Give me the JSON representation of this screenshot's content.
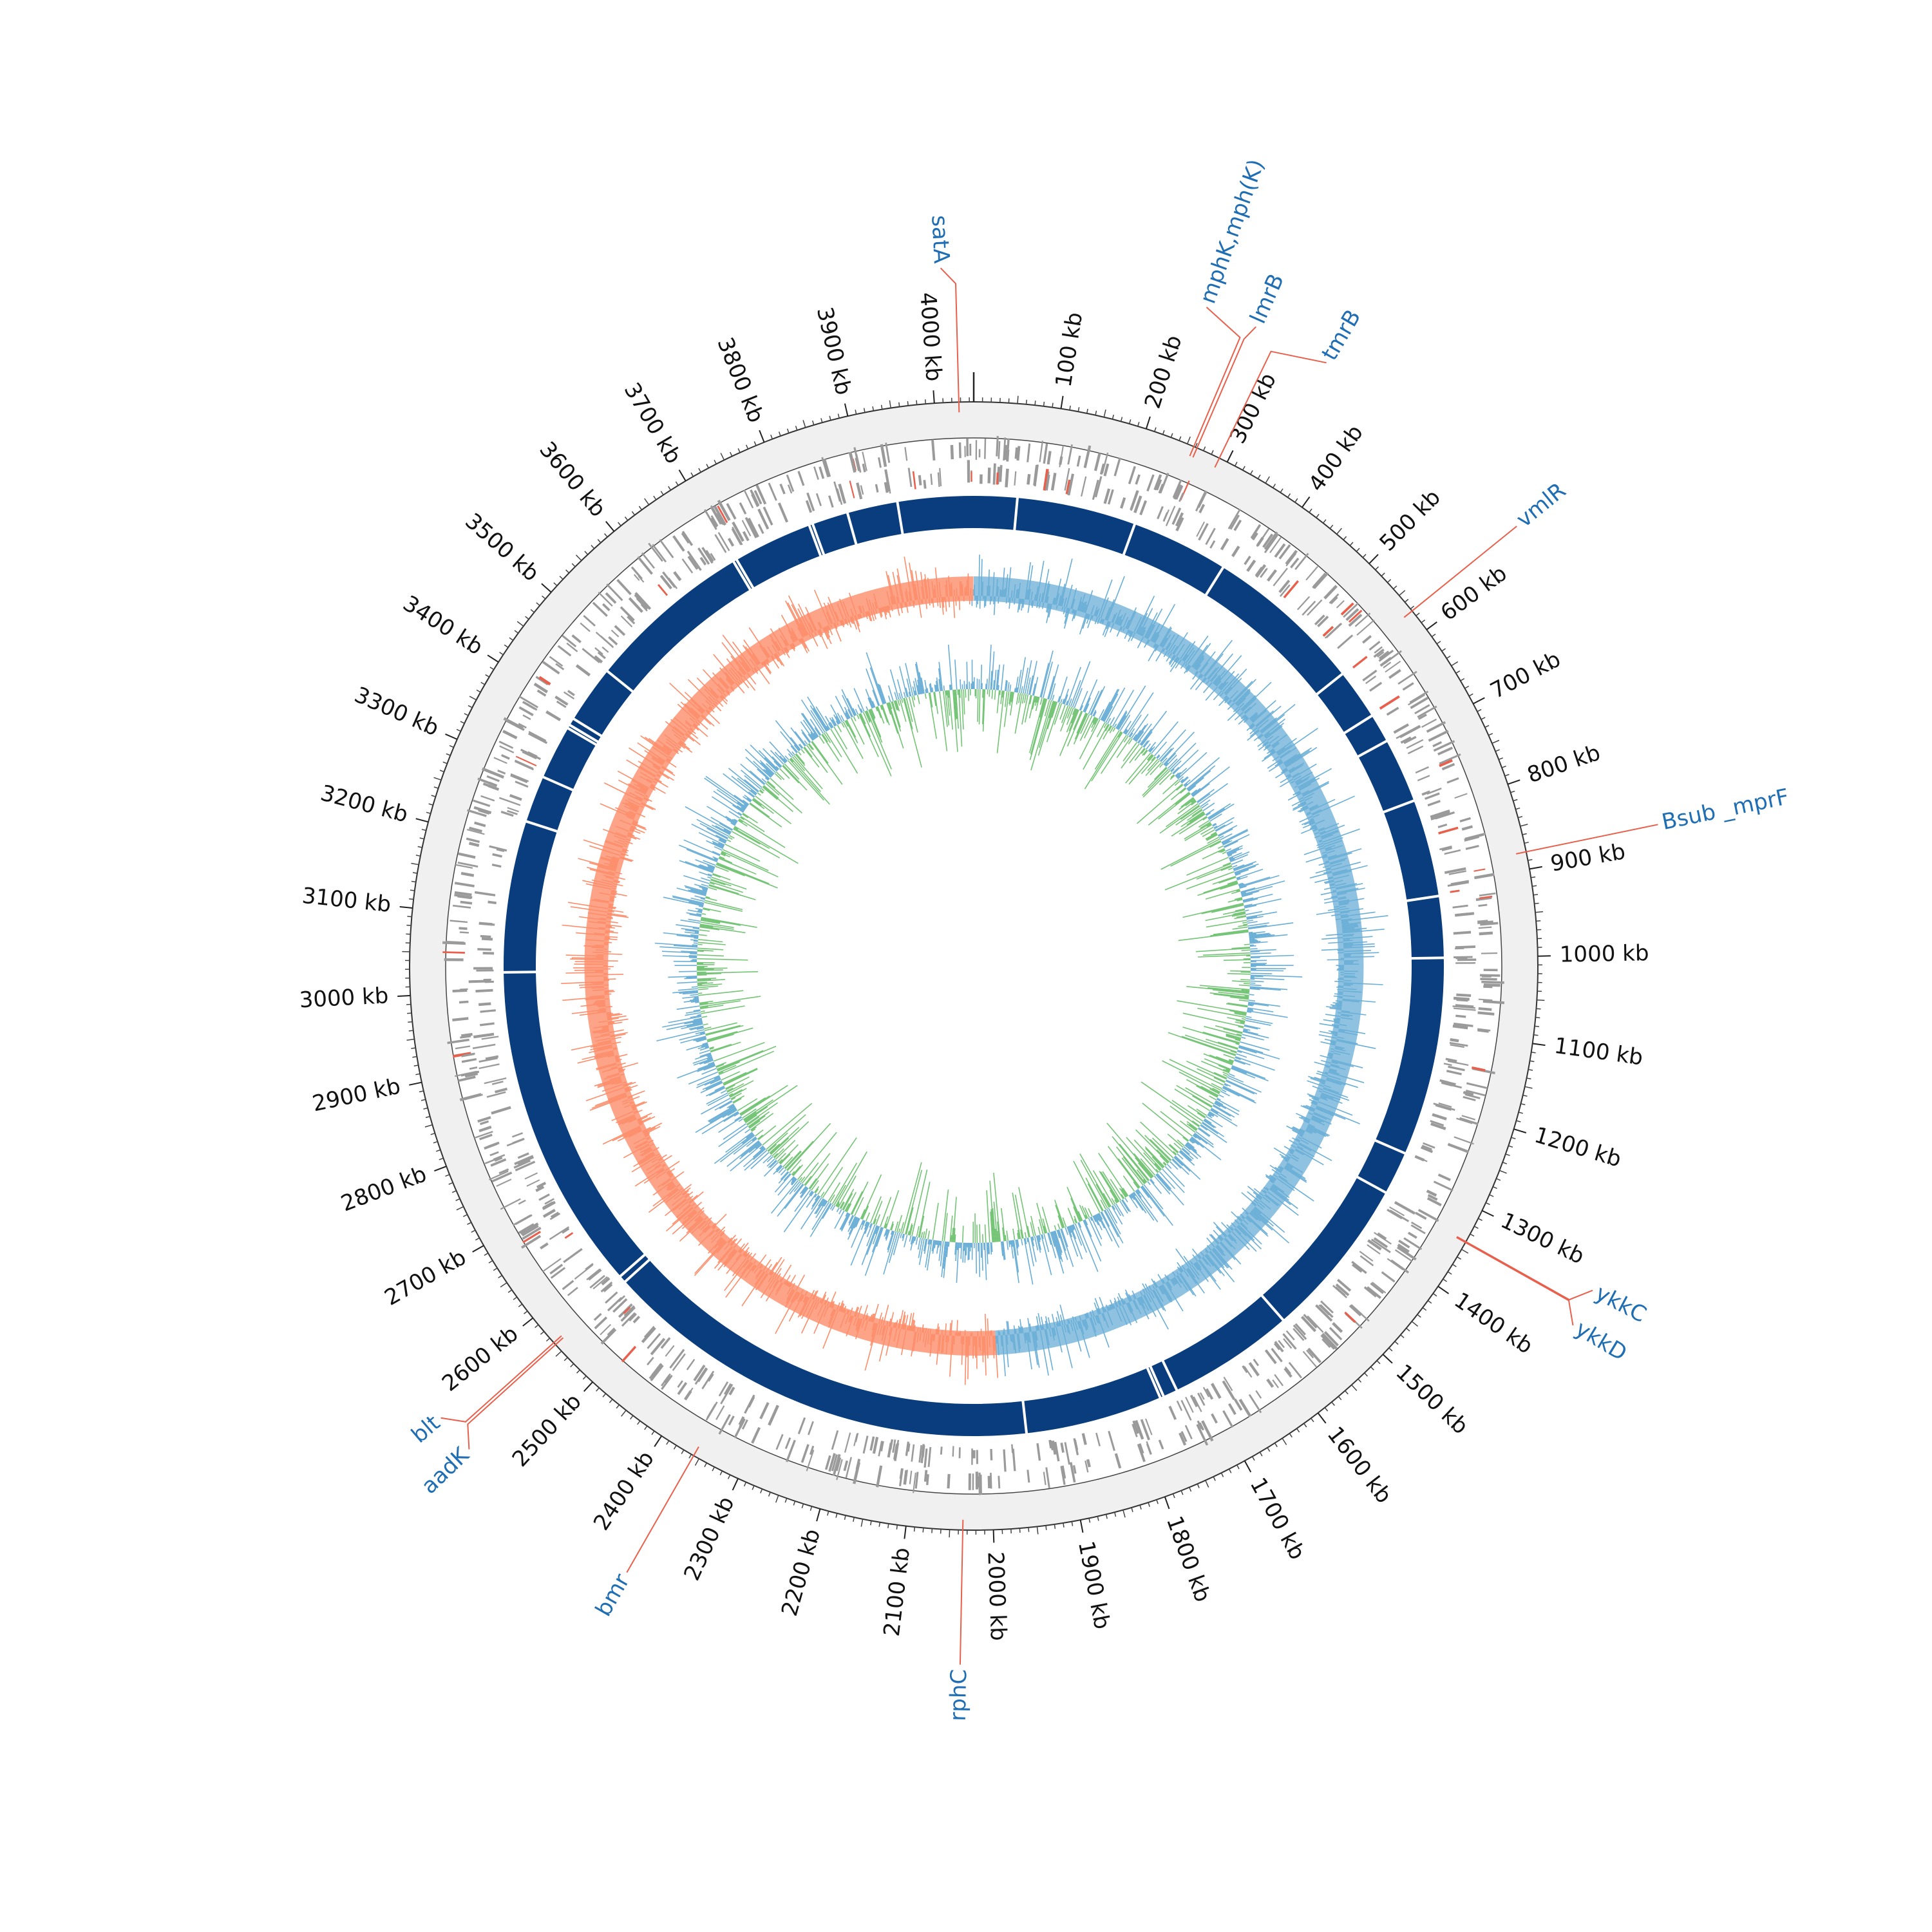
{
  "genome": {
    "length_kb": 4045,
    "tick_unit": "kb",
    "tick_labels": [
      {
        "kb": 100,
        "text": "100 kb"
      },
      {
        "kb": 200,
        "text": "200 kb"
      },
      {
        "kb": 300,
        "text": "300 kb"
      },
      {
        "kb": 400,
        "text": "400 kb"
      },
      {
        "kb": 500,
        "text": "500 kb"
      },
      {
        "kb": 600,
        "text": "600 kb"
      },
      {
        "kb": 700,
        "text": "700 kb"
      },
      {
        "kb": 800,
        "text": "800 kb"
      },
      {
        "kb": 900,
        "text": "900 kb"
      },
      {
        "kb": 1000,
        "text": "1000 kb"
      },
      {
        "kb": 1100,
        "text": "1100 kb"
      },
      {
        "kb": 1200,
        "text": "1200 kb"
      },
      {
        "kb": 1300,
        "text": "1300 kb"
      },
      {
        "kb": 1400,
        "text": "1400 kb"
      },
      {
        "kb": 1500,
        "text": "1500 kb"
      },
      {
        "kb": 1600,
        "text": "1600 kb"
      },
      {
        "kb": 1700,
        "text": "1700 kb"
      },
      {
        "kb": 1800,
        "text": "1800 kb"
      },
      {
        "kb": 1900,
        "text": "1900 kb"
      },
      {
        "kb": 2000,
        "text": "2000 kb"
      },
      {
        "kb": 2100,
        "text": "2100 kb"
      },
      {
        "kb": 2200,
        "text": "2200 kb"
      },
      {
        "kb": 2300,
        "text": "2300 kb"
      },
      {
        "kb": 2400,
        "text": "2400 kb"
      },
      {
        "kb": 2500,
        "text": "2500 kb"
      },
      {
        "kb": 2600,
        "text": "2600 kb"
      },
      {
        "kb": 2700,
        "text": "2700 kb"
      },
      {
        "kb": 2800,
        "text": "2800 kb"
      },
      {
        "kb": 2900,
        "text": "2900 kb"
      },
      {
        "kb": 3000,
        "text": "3000 kb"
      },
      {
        "kb": 3100,
        "text": "3100 kb"
      },
      {
        "kb": 3200,
        "text": "3200 kb"
      },
      {
        "kb": 3300,
        "text": "3300 kb"
      },
      {
        "kb": 3400,
        "text": "3400 kb"
      },
      {
        "kb": 3500,
        "text": "3500 kb"
      },
      {
        "kb": 3600,
        "text": "3600 kb"
      },
      {
        "kb": 3700,
        "text": "3700 kb"
      },
      {
        "kb": 3800,
        "text": "3800 kb"
      },
      {
        "kb": 3900,
        "text": "3900 kb"
      },
      {
        "kb": 4000,
        "text": "4000 kb"
      }
    ]
  },
  "gene_labels": [
    {
      "name": "satA",
      "kb": 4028
    },
    {
      "name": "mphK,mph(K)",
      "kb": 258
    },
    {
      "name": "lmrB",
      "kb": 262
    },
    {
      "name": "tmrB",
      "kb": 290
    },
    {
      "name": "vmlR",
      "kb": 573
    },
    {
      "name": "Bsub _mprF",
      "kb": 880
    },
    {
      "name": "ykkC",
      "kb": 1340
    },
    {
      "name": "ykkD",
      "kb": 1341
    },
    {
      "name": "rphC",
      "kb": 2035
    },
    {
      "name": "bmr",
      "kb": 2357
    },
    {
      "name": "aadK",
      "kb": 2560
    },
    {
      "name": "blt",
      "kb": 2563
    }
  ],
  "backbone_gaps_kb": [
    60,
    225,
    360,
    580,
    650,
    690,
    780,
    915,
    1000,
    1275,
    1335,
    1560,
    1735,
    1755,
    1760,
    1950,
    2560,
    2570,
    3025,
    3235,
    3300,
    3375,
    3380,
    3390,
    3470,
    3700,
    3705,
    3815,
    3820,
    3870,
    3940
  ],
  "colors": {
    "label_blue": "#1f6db3",
    "leader_red": "#e8604c",
    "backbone": "#0a3d7d",
    "cds_gray": "#9a9a9a",
    "cds_red": "#e8604c",
    "ruler_bg": "#f0f0f0",
    "gc_positive": "#6aaed6",
    "gc_negative": "#fc8d6a",
    "skew_blue": "#6aaed6",
    "skew_green": "#74c476"
  }
}
